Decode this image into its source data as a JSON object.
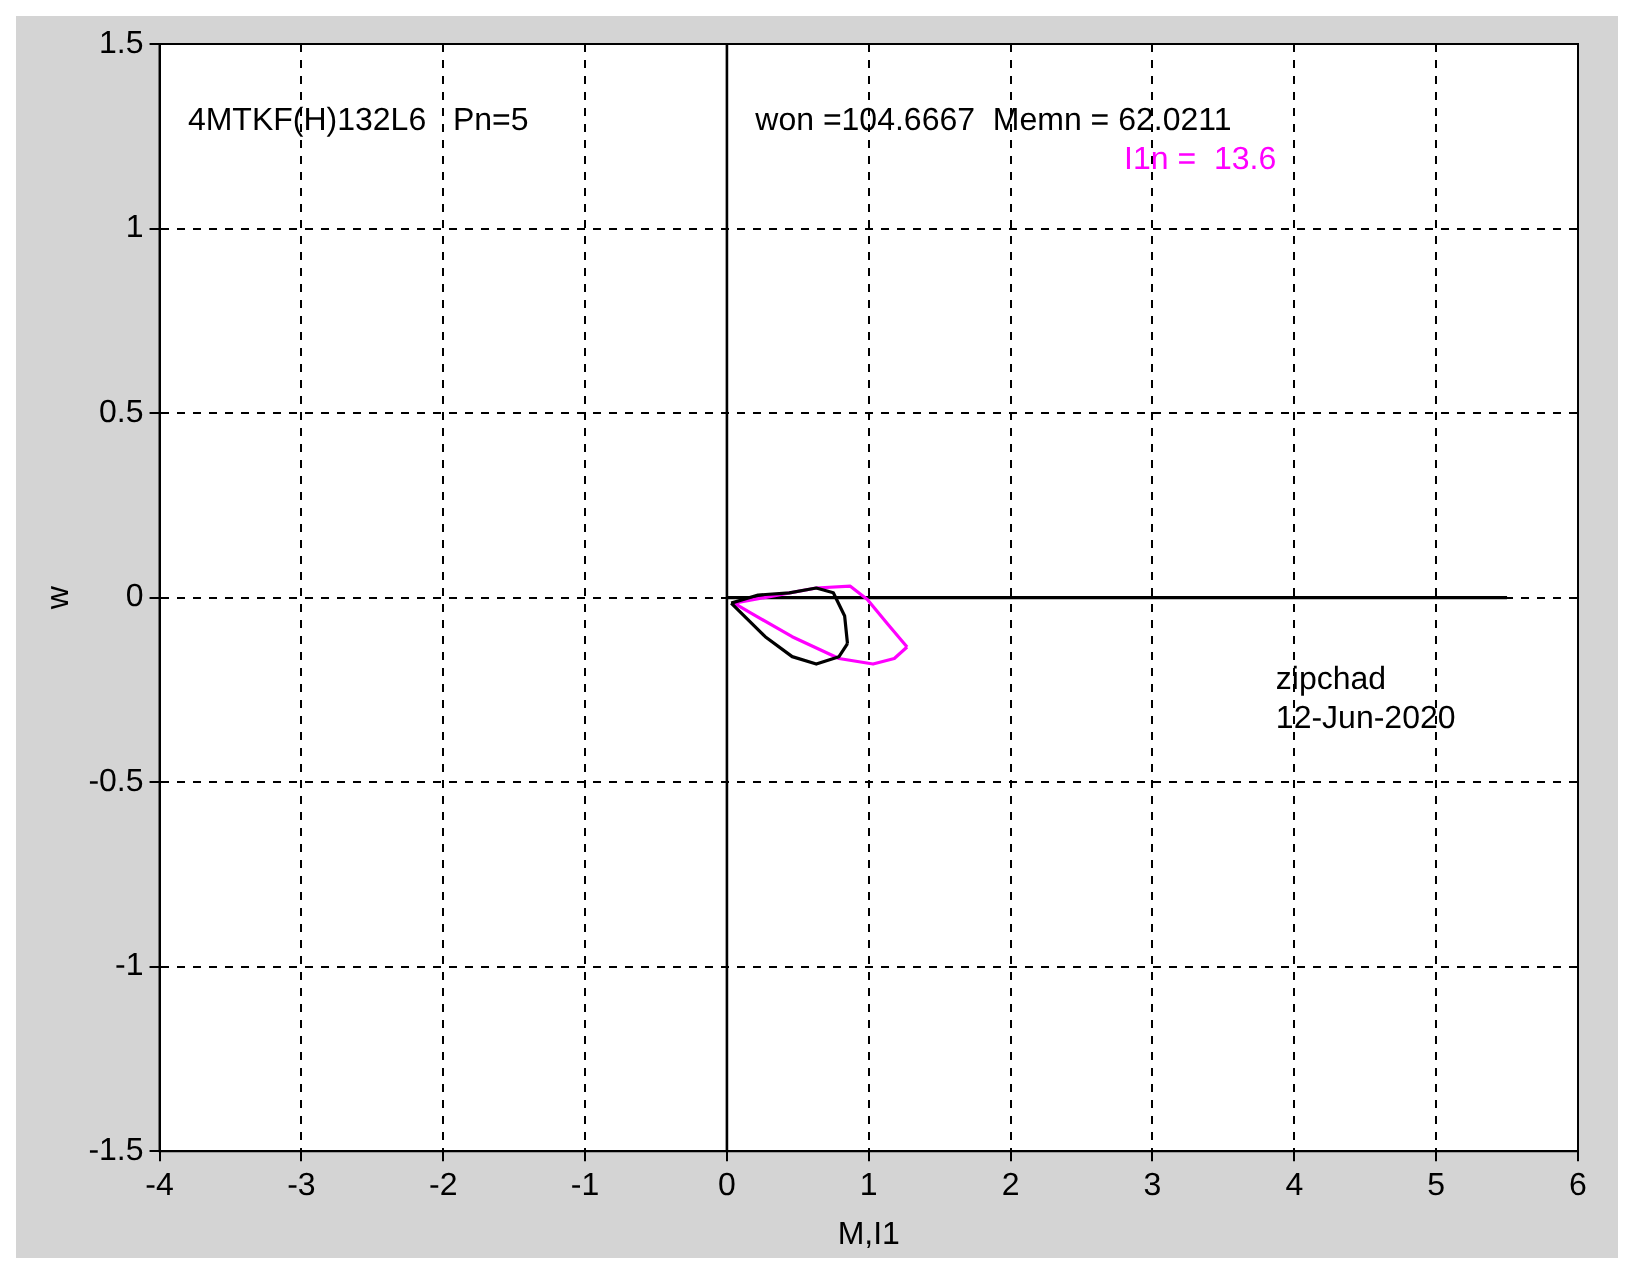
{
  "chart_data": {
    "type": "line",
    "xlabel": "M,I1",
    "ylabel": "w",
    "xlim": [
      -4,
      6
    ],
    "ylim": [
      -1.5,
      1.5
    ],
    "xticks": [
      -4,
      -3,
      -2,
      -1,
      0,
      1,
      2,
      3,
      4,
      5,
      6
    ],
    "yticks": [
      -1.5,
      -1,
      -0.5,
      0,
      0.5,
      1,
      1.5
    ],
    "grid": true,
    "legend": false,
    "marker": "none",
    "line_style": "solid",
    "series": [
      {
        "color": "#000000",
        "x": [
          0.03,
          0.22,
          0.44,
          0.63,
          0.75,
          0.83,
          0.85
        ],
        "values": [
          -0.015,
          0.007,
          0.013,
          0.026,
          0.013,
          -0.05,
          -0.125
        ]
      },
      {
        "color": "#000000",
        "x": [
          0.03,
          0.27,
          0.46,
          0.63,
          0.79,
          0.85
        ],
        "values": [
          -0.015,
          -0.106,
          -0.16,
          -0.18,
          -0.16,
          -0.125
        ]
      },
      {
        "color": "#ff00ff",
        "x": [
          0.05,
          0.32,
          0.63,
          0.87,
          0.99,
          1.13,
          1.27
        ],
        "values": [
          -0.015,
          0.004,
          0.026,
          0.031,
          -0.005,
          -0.07,
          -0.134
        ]
      },
      {
        "color": "#ff00ff",
        "x": [
          0.05,
          0.17,
          0.46,
          0.79,
          1.03,
          1.18,
          1.27
        ],
        "values": [
          -0.015,
          -0.042,
          -0.106,
          -0.165,
          -0.18,
          -0.165,
          -0.134
        ]
      },
      {
        "color": "#000000",
        "x": [
          0,
          5.5
        ],
        "values": [
          0,
          0
        ]
      }
    ],
    "ref_lines": [
      {
        "axis": "x",
        "value": 0,
        "color": "#000000"
      }
    ],
    "annotations": [
      "4MTKF(H)132L6   Pn=5",
      "won =104.6667  Memn = 62.0211",
      "I1n =  13.6",
      "zipchad",
      "12-Jun-2020"
    ]
  }
}
